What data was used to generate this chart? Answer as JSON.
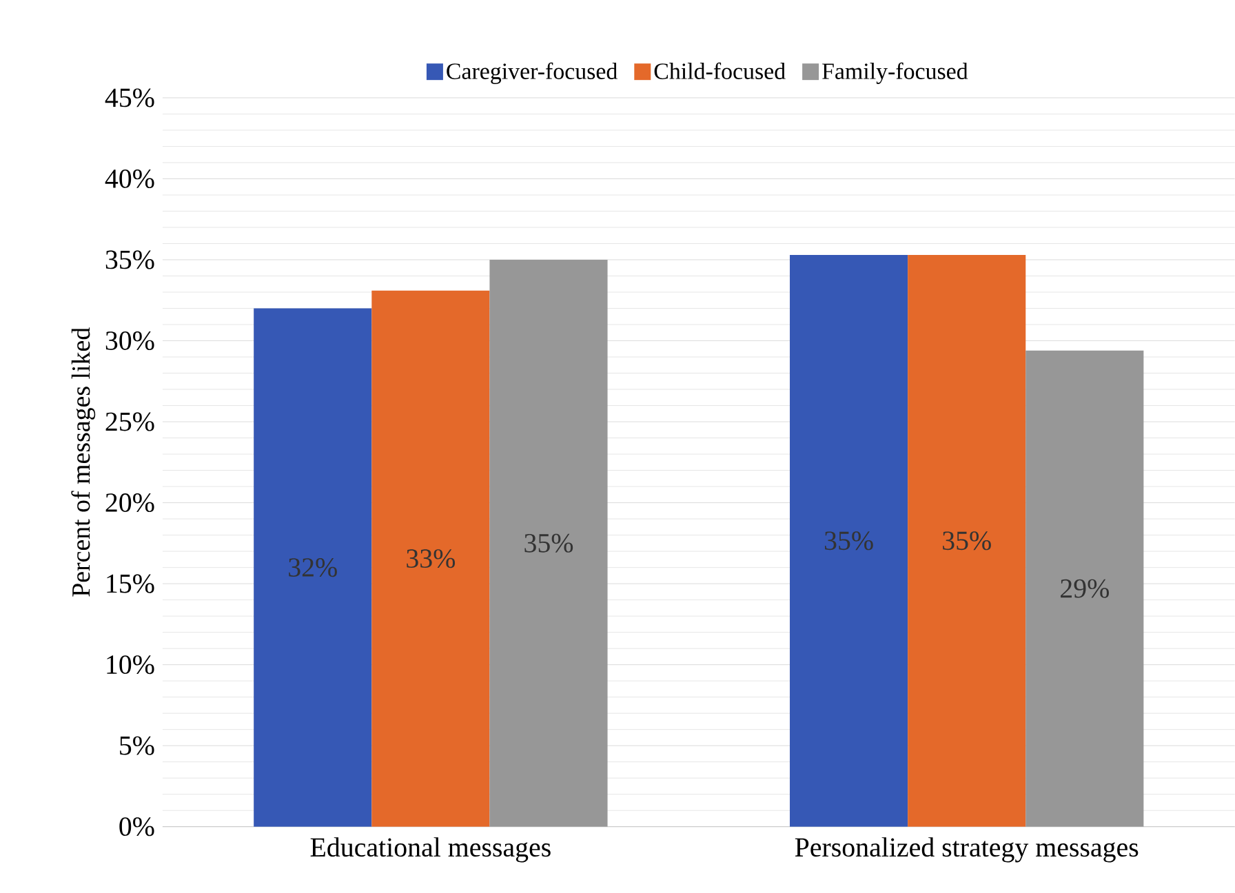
{
  "chart_data": {
    "type": "bar",
    "ylabel": "Percent of messages liked",
    "categories": [
      "Educational messages",
      "Personalized strategy messages"
    ],
    "series": [
      {
        "name": "Caregiver-focused",
        "color": "#3658b5",
        "values": [
          32.0,
          35.3
        ],
        "value_labels": [
          "32%",
          "35%"
        ]
      },
      {
        "name": "Child-focused",
        "color": "#e4692a",
        "values": [
          33.1,
          35.3
        ],
        "value_labels": [
          "33%",
          "35%"
        ]
      },
      {
        "name": "Family-focused",
        "color": "#979797",
        "values": [
          35.0,
          29.4
        ],
        "value_labels": [
          "35%",
          "29%"
        ]
      }
    ],
    "ylim": [
      0,
      45
    ],
    "yticks": [
      {
        "value": 0,
        "label": "0%"
      },
      {
        "value": 5,
        "label": "5%"
      },
      {
        "value": 10,
        "label": "10%"
      },
      {
        "value": 15,
        "label": "15%"
      },
      {
        "value": 20,
        "label": "20%"
      },
      {
        "value": 25,
        "label": "25%"
      },
      {
        "value": 30,
        "label": "30%"
      },
      {
        "value": 35,
        "label": "35%"
      },
      {
        "value": 40,
        "label": "40%"
      },
      {
        "value": 45,
        "label": "45%"
      }
    ],
    "grid": "y",
    "legend": "top"
  }
}
